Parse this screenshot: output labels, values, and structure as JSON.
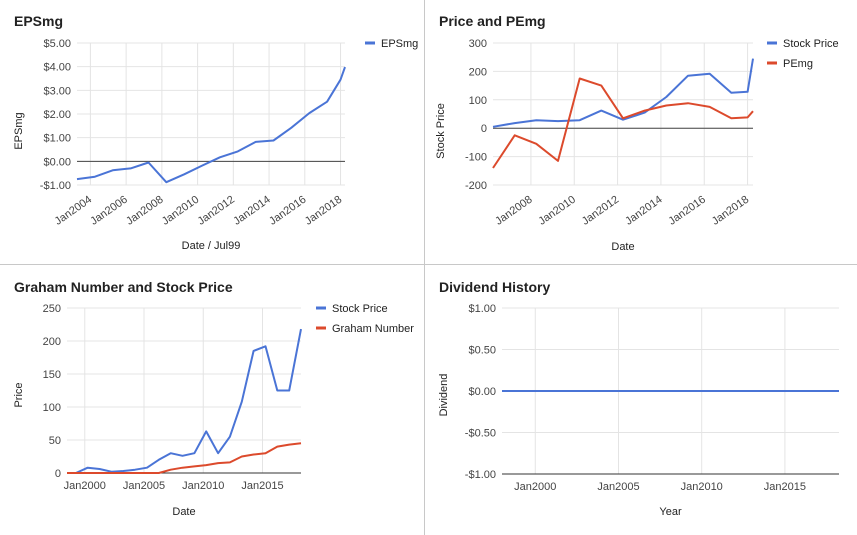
{
  "chart_data": [
    {
      "type": "line",
      "title": "EPSmg",
      "xlabel": "Date / Jul99",
      "ylabel": "EPSmg",
      "xlim": [
        2003.25,
        2018.25
      ],
      "ylim": [
        -1,
        5
      ],
      "yticks": [
        {
          "v": 5,
          "label": "$5.00"
        },
        {
          "v": 4,
          "label": "$4.00"
        },
        {
          "v": 3,
          "label": "$3.00"
        },
        {
          "v": 2,
          "label": "$2.00"
        },
        {
          "v": 1,
          "label": "$1.00"
        },
        {
          "v": 0,
          "label": "$0.00"
        },
        {
          "v": -1,
          "label": "-$1.00"
        }
      ],
      "xticks": [
        {
          "v": 2004,
          "label": "Jan2004"
        },
        {
          "v": 2006,
          "label": "Jan2006"
        },
        {
          "v": 2008,
          "label": "Jan2008"
        },
        {
          "v": 2010,
          "label": "Jan2010"
        },
        {
          "v": 2012,
          "label": "Jan2012"
        },
        {
          "v": 2014,
          "label": "Jan2014"
        },
        {
          "v": 2016,
          "label": "Jan2016"
        },
        {
          "v": 2018,
          "label": "Jan2018"
        }
      ],
      "x_tick_rotate": true,
      "zero_line": true,
      "legend": "right",
      "series": [
        {
          "name": "EPSmg",
          "color": "#4a74d6",
          "x": [
            2003.25,
            2004.25,
            2005.25,
            2006.25,
            2007.25,
            2008.25,
            2009.25,
            2010.25,
            2011.25,
            2012.25,
            2013.25,
            2014.25,
            2015.25,
            2016.25,
            2017.25,
            2018.0,
            2018.25
          ],
          "y": [
            -0.75,
            -0.65,
            -0.38,
            -0.3,
            -0.05,
            -0.88,
            -0.55,
            -0.18,
            0.17,
            0.42,
            0.82,
            0.88,
            1.42,
            2.04,
            2.52,
            3.45,
            3.98
          ]
        }
      ]
    },
    {
      "type": "line",
      "title": "Price and PEmg",
      "xlabel": "Date",
      "ylabel": "Stock Price",
      "xlim": [
        2006.25,
        2018.25
      ],
      "ylim": [
        -200,
        300
      ],
      "yticks": [
        {
          "v": 300,
          "label": "300"
        },
        {
          "v": 200,
          "label": "200"
        },
        {
          "v": 100,
          "label": "100"
        },
        {
          "v": 0,
          "label": "0"
        },
        {
          "v": -100,
          "label": "-100"
        },
        {
          "v": -200,
          "label": "-200"
        }
      ],
      "xticks": [
        {
          "v": 2008,
          "label": "Jan2008"
        },
        {
          "v": 2010,
          "label": "Jan2010"
        },
        {
          "v": 2012,
          "label": "Jan2012"
        },
        {
          "v": 2014,
          "label": "Jan2014"
        },
        {
          "v": 2016,
          "label": "Jan2016"
        },
        {
          "v": 2018,
          "label": "Jan2018"
        }
      ],
      "x_tick_rotate": true,
      "zero_line": true,
      "legend": "right",
      "series": [
        {
          "name": "Stock Price",
          "color": "#4a74d6",
          "x": [
            2006.25,
            2007.25,
            2008.25,
            2009.25,
            2010.25,
            2011.25,
            2012.25,
            2013.25,
            2014.25,
            2015.25,
            2016.25,
            2017.25,
            2018.0,
            2018.25
          ],
          "y": [
            5,
            18,
            28,
            25,
            28,
            62,
            30,
            55,
            110,
            185,
            192,
            125,
            128,
            245
          ]
        },
        {
          "name": "PEmg",
          "color": "#dc4a2c",
          "x": [
            2006.25,
            2007.25,
            2008.25,
            2009.25,
            2010.25,
            2011.25,
            2012.25,
            2013.25,
            2014.25,
            2015.25,
            2016.25,
            2017.25,
            2018.0,
            2018.25
          ],
          "y": [
            -140,
            -25,
            -55,
            -115,
            175,
            150,
            35,
            62,
            80,
            88,
            75,
            35,
            38,
            60
          ]
        }
      ]
    },
    {
      "type": "line",
      "title": "Graham Number and Stock Price",
      "xlabel": "Date",
      "ylabel": "Price",
      "xlim": [
        1998.5,
        2018.25
      ],
      "ylim": [
        0,
        250
      ],
      "yticks": [
        {
          "v": 250,
          "label": "250"
        },
        {
          "v": 200,
          "label": "200"
        },
        {
          "v": 150,
          "label": "150"
        },
        {
          "v": 100,
          "label": "100"
        },
        {
          "v": 50,
          "label": "50"
        },
        {
          "v": 0,
          "label": "0"
        }
      ],
      "xticks": [
        {
          "v": 2000,
          "label": "Jan2000"
        },
        {
          "v": 2005,
          "label": "Jan2005"
        },
        {
          "v": 2010,
          "label": "Jan2010"
        },
        {
          "v": 2015,
          "label": "Jan2015"
        }
      ],
      "x_tick_rotate": false,
      "zero_line": false,
      "legend": "right",
      "series": [
        {
          "name": "Stock Price",
          "color": "#4a74d6",
          "x": [
            1998.5,
            1999.25,
            2000.25,
            2001.25,
            2002.25,
            2003.25,
            2004.25,
            2005.25,
            2006.25,
            2007.25,
            2008.25,
            2009.25,
            2010.25,
            2011.25,
            2012.25,
            2013.25,
            2014.25,
            2015.25,
            2016.25,
            2017.25,
            2018.25
          ],
          "y": [
            0,
            0,
            8,
            6,
            2,
            3,
            5,
            8,
            20,
            30,
            26,
            30,
            63,
            30,
            55,
            108,
            185,
            192,
            125,
            125,
            218
          ]
        },
        {
          "name": "Graham Number",
          "color": "#dc4a2c",
          "x": [
            1998.5,
            1999.25,
            2000.25,
            2001.25,
            2002.25,
            2003.25,
            2004.25,
            2005.25,
            2006.25,
            2007.25,
            2008.25,
            2009.25,
            2010.25,
            2011.25,
            2012.25,
            2013.25,
            2014.25,
            2015.25,
            2016.25,
            2017.25,
            2018.25
          ],
          "y": [
            0,
            0,
            0,
            0,
            0,
            0,
            0,
            0,
            0,
            5,
            8,
            10,
            12,
            15,
            16,
            25,
            28,
            30,
            40,
            43,
            45
          ]
        }
      ]
    },
    {
      "type": "line",
      "title": "Dividend History",
      "xlabel": "Year",
      "ylabel": "Dividend",
      "xlim": [
        1998.0,
        2018.25
      ],
      "ylim": [
        -1,
        1
      ],
      "yticks": [
        {
          "v": 1,
          "label": "$1.00"
        },
        {
          "v": 0.5,
          "label": "$0.50"
        },
        {
          "v": 0,
          "label": "$0.00"
        },
        {
          "v": -0.5,
          "label": "-$0.50"
        },
        {
          "v": -1,
          "label": "-$1.00"
        }
      ],
      "xticks": [
        {
          "v": 2000,
          "label": "Jan2000"
        },
        {
          "v": 2005,
          "label": "Jan2005"
        },
        {
          "v": 2010,
          "label": "Jan2010"
        },
        {
          "v": 2015,
          "label": "Jan2015"
        }
      ],
      "x_tick_rotate": false,
      "zero_line": false,
      "legend": "none",
      "series": [
        {
          "name": "",
          "color": "#4a74d6",
          "x": [
            1998.0,
            2018.25
          ],
          "y": [
            0,
            0
          ]
        }
      ]
    }
  ]
}
